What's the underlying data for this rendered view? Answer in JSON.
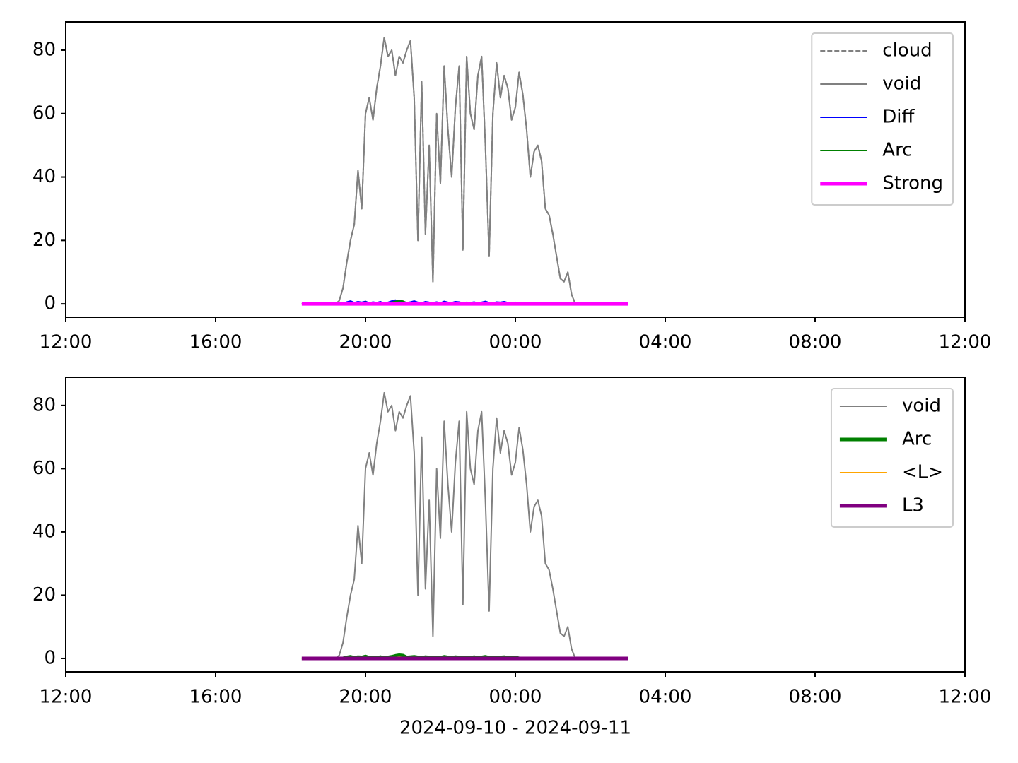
{
  "chart_data": [
    {
      "type": "line",
      "x": [
        18.3,
        18.4,
        18.5,
        18.6,
        18.7,
        18.8,
        18.9,
        19.0,
        19.1,
        19.2,
        19.3,
        19.4,
        19.5,
        19.6,
        19.7,
        19.8,
        19.9,
        20.0,
        20.1,
        20.2,
        20.3,
        20.4,
        20.5,
        20.6,
        20.7,
        20.8,
        20.9,
        21.0,
        21.1,
        21.2,
        21.3,
        21.4,
        21.5,
        21.6,
        21.7,
        21.8,
        21.9,
        22.0,
        22.1,
        22.2,
        22.3,
        22.4,
        22.5,
        22.6,
        22.7,
        22.8,
        22.9,
        23.0,
        23.1,
        23.2,
        23.3,
        23.4,
        23.5,
        23.6,
        23.7,
        23.8,
        23.9,
        24.0,
        24.1,
        24.2,
        24.3,
        24.4,
        24.5,
        24.6,
        24.7,
        24.8,
        24.9,
        25.0,
        25.1,
        25.2,
        25.3,
        25.4,
        25.5,
        25.6,
        25.7,
        25.8,
        25.9,
        26.0,
        26.1,
        26.2,
        26.3,
        26.4,
        26.5,
        26.6,
        26.7,
        26.8,
        26.9,
        27.0
      ],
      "series": [
        {
          "name": "cloud",
          "color": "#808080",
          "linestyle": "dashed",
          "linewidth": 2,
          "values": [
            0,
            0,
            0,
            0,
            0,
            0,
            0,
            0,
            0,
            0,
            1,
            5,
            13,
            20,
            25,
            42,
            30,
            60,
            65,
            58,
            68,
            75,
            84,
            78,
            80,
            72,
            78,
            76,
            80,
            83,
            65,
            20,
            70,
            22,
            50,
            7,
            60,
            38,
            75,
            55,
            40,
            62,
            75,
            17,
            78,
            60,
            55,
            72,
            78,
            50,
            15,
            60,
            76,
            65,
            72,
            68,
            58,
            62,
            73,
            66,
            55,
            40,
            48,
            50,
            45,
            30,
            28,
            22,
            15,
            8,
            7,
            10,
            3,
            0,
            0,
            0,
            0,
            0,
            0,
            0,
            0,
            0,
            0,
            0,
            0,
            0,
            0,
            0
          ]
        },
        {
          "name": "void",
          "color": "#808080",
          "linestyle": "solid",
          "linewidth": 2,
          "values": [
            0,
            0,
            0,
            0,
            0,
            0,
            0,
            0,
            0,
            0,
            1,
            5,
            13,
            20,
            25,
            42,
            30,
            60,
            65,
            58,
            68,
            75,
            84,
            78,
            80,
            72,
            78,
            76,
            80,
            83,
            65,
            20,
            70,
            22,
            50,
            7,
            60,
            38,
            75,
            55,
            40,
            62,
            75,
            17,
            78,
            60,
            55,
            72,
            78,
            50,
            15,
            60,
            76,
            65,
            72,
            68,
            58,
            62,
            73,
            66,
            55,
            40,
            48,
            50,
            45,
            30,
            28,
            22,
            15,
            8,
            7,
            10,
            3,
            0,
            0,
            0,
            0,
            0,
            0,
            0,
            0,
            0,
            0,
            0,
            0,
            0,
            0,
            0
          ]
        },
        {
          "name": "Diff",
          "color": "#0000ff",
          "linestyle": "solid",
          "linewidth": 2,
          "values": [
            0,
            0,
            0,
            0,
            0,
            0,
            0,
            0,
            0,
            0,
            0,
            0,
            0.6,
            0.9,
            0.4,
            0.7,
            0.5,
            0.8,
            0.3,
            0.6,
            0.4,
            0.7,
            0.2,
            0.5,
            0.9,
            1.2,
            0.6,
            0.8,
            0.4,
            0.6,
            0.9,
            0.5,
            0.3,
            0.7,
            0.5,
            0.4,
            0.6,
            0.3,
            0.8,
            0.5,
            0.4,
            0.7,
            0.6,
            0.3,
            0.5,
            0.4,
            0.6,
            0.2,
            0.5,
            0.8,
            0.4,
            0.3,
            0.6,
            0.5,
            0.7,
            0.4,
            0.3,
            0.5,
            0,
            0,
            0,
            0,
            0,
            0,
            0,
            0,
            0,
            0,
            0,
            0,
            0,
            0,
            0,
            0,
            0,
            0,
            0,
            0,
            0,
            0,
            0,
            0,
            0,
            0,
            0,
            0,
            0,
            0
          ]
        },
        {
          "name": "Arc",
          "color": "#008000",
          "linestyle": "solid",
          "linewidth": 2,
          "values": [
            0,
            0,
            0,
            0,
            0,
            0,
            0,
            0,
            0,
            0,
            0,
            0,
            0.3,
            0.5,
            0.2,
            0.4,
            0.3,
            0.6,
            0.2,
            0.3,
            0.2,
            0.4,
            0.1,
            0.3,
            0.5,
            0.8,
            1.0,
            0.9,
            0.3,
            0.4,
            0.5,
            0.3,
            0.2,
            0.4,
            0.3,
            0.2,
            0.3,
            0.2,
            0.5,
            0.3,
            0.2,
            0.4,
            0.3,
            0.2,
            0.3,
            0.2,
            0.4,
            0.1,
            0.3,
            0.5,
            0.2,
            0.2,
            0.3,
            0.3,
            0.4,
            0.2,
            0.2,
            0.3,
            0,
            0,
            0,
            0,
            0,
            0,
            0,
            0,
            0,
            0,
            0,
            0,
            0,
            0,
            0,
            0,
            0,
            0,
            0,
            0,
            0,
            0,
            0,
            0,
            0,
            0,
            0,
            0,
            0,
            0
          ]
        },
        {
          "name": "Strong",
          "color": "#ff00ff",
          "linestyle": "solid",
          "linewidth": 5,
          "values": [
            0,
            0,
            0,
            0,
            0,
            0,
            0,
            0,
            0,
            0,
            0,
            0,
            0,
            0,
            0,
            0,
            0,
            0,
            0,
            0,
            0,
            0,
            0,
            0,
            0,
            0,
            0,
            0,
            0,
            0,
            0,
            0,
            0,
            0,
            0,
            0,
            0,
            0,
            0,
            0,
            0,
            0,
            0,
            0,
            0,
            0,
            0,
            0,
            0,
            0,
            0,
            0,
            0,
            0,
            0,
            0,
            0,
            0,
            0,
            0,
            0,
            0,
            0,
            0,
            0,
            0,
            0,
            0,
            0,
            0,
            0,
            0,
            0,
            0,
            0,
            0,
            0,
            0,
            0,
            0,
            0,
            0,
            0,
            0,
            0,
            0,
            0,
            0
          ]
        }
      ],
      "xlim": [
        12,
        36
      ],
      "ylim": [
        -4.2,
        88.9
      ],
      "xticks": [
        {
          "value": 12,
          "label": "12:00"
        },
        {
          "value": 16,
          "label": "16:00"
        },
        {
          "value": 20,
          "label": "20:00"
        },
        {
          "value": 24,
          "label": "00:00"
        },
        {
          "value": 28,
          "label": "04:00"
        },
        {
          "value": 32,
          "label": "08:00"
        },
        {
          "value": 36,
          "label": "12:00"
        }
      ],
      "yticks": [
        0,
        20,
        40,
        60,
        80
      ],
      "legend": "upper right"
    },
    {
      "type": "line",
      "x": [
        18.3,
        18.4,
        18.5,
        18.6,
        18.7,
        18.8,
        18.9,
        19.0,
        19.1,
        19.2,
        19.3,
        19.4,
        19.5,
        19.6,
        19.7,
        19.8,
        19.9,
        20.0,
        20.1,
        20.2,
        20.3,
        20.4,
        20.5,
        20.6,
        20.7,
        20.8,
        20.9,
        21.0,
        21.1,
        21.2,
        21.3,
        21.4,
        21.5,
        21.6,
        21.7,
        21.8,
        21.9,
        22.0,
        22.1,
        22.2,
        22.3,
        22.4,
        22.5,
        22.6,
        22.7,
        22.8,
        22.9,
        23.0,
        23.1,
        23.2,
        23.3,
        23.4,
        23.5,
        23.6,
        23.7,
        23.8,
        23.9,
        24.0,
        24.1,
        24.2,
        24.3,
        24.4,
        24.5,
        24.6,
        24.7,
        24.8,
        24.9,
        25.0,
        25.1,
        25.2,
        25.3,
        25.4,
        25.5,
        25.6,
        25.7,
        25.8,
        25.9,
        26.0,
        26.1,
        26.2,
        26.3,
        26.4,
        26.5,
        26.6,
        26.7,
        26.8,
        26.9,
        27.0
      ],
      "series": [
        {
          "name": "void",
          "color": "#808080",
          "linestyle": "solid",
          "linewidth": 2,
          "values": [
            0,
            0,
            0,
            0,
            0,
            0,
            0,
            0,
            0,
            0,
            1,
            5,
            13,
            20,
            25,
            42,
            30,
            60,
            65,
            58,
            68,
            75,
            84,
            78,
            80,
            72,
            78,
            76,
            80,
            83,
            65,
            20,
            70,
            22,
            50,
            7,
            60,
            38,
            75,
            55,
            40,
            62,
            75,
            17,
            78,
            60,
            55,
            72,
            78,
            50,
            15,
            60,
            76,
            65,
            72,
            68,
            58,
            62,
            73,
            66,
            55,
            40,
            48,
            50,
            45,
            30,
            28,
            22,
            15,
            8,
            7,
            10,
            3,
            0,
            0,
            0,
            0,
            0,
            0,
            0,
            0,
            0,
            0,
            0,
            0,
            0,
            0,
            0
          ]
        },
        {
          "name": "Arc",
          "color": "#008000",
          "linestyle": "solid",
          "linewidth": 5,
          "values": [
            0,
            0,
            0,
            0,
            0,
            0,
            0,
            0,
            0,
            0,
            0,
            0,
            0.3,
            0.5,
            0.2,
            0.4,
            0.3,
            0.6,
            0.2,
            0.3,
            0.2,
            0.4,
            0.1,
            0.3,
            0.5,
            0.8,
            1.0,
            0.9,
            0.3,
            0.4,
            0.5,
            0.3,
            0.2,
            0.4,
            0.3,
            0.2,
            0.3,
            0.2,
            0.5,
            0.3,
            0.2,
            0.4,
            0.3,
            0.2,
            0.3,
            0.2,
            0.4,
            0.1,
            0.3,
            0.5,
            0.2,
            0.2,
            0.3,
            0.3,
            0.4,
            0.2,
            0.2,
            0.3,
            0,
            0,
            0,
            0,
            0,
            0,
            0,
            0,
            0,
            0,
            0,
            0,
            0,
            0,
            0,
            0,
            0,
            0,
            0,
            0,
            0,
            0,
            0,
            0,
            0,
            0,
            0,
            0,
            0,
            0
          ]
        },
        {
          "name": "<L>",
          "color": "#ffa500",
          "linestyle": "solid",
          "linewidth": 2,
          "values": [
            0,
            0,
            0,
            0,
            0,
            0,
            0,
            0,
            0,
            0,
            0,
            0,
            0.2,
            0.3,
            0.2,
            0.2,
            0.3,
            0.2,
            0.2,
            0.3,
            0.2,
            0.2,
            0.2,
            0.3,
            0.2,
            0.3,
            0.4,
            0.3,
            0.2,
            0.2,
            0.3,
            0.2,
            0.2,
            0.2,
            0.3,
            0.2,
            0.2,
            0.2,
            0.3,
            0.2,
            0.2,
            0.3,
            0.2,
            0.2,
            0.2,
            0.2,
            0.3,
            0.2,
            0.2,
            0.3,
            0.2,
            0.2,
            0.2,
            0.2,
            0.3,
            0.2,
            0.2,
            0.2,
            0,
            0,
            0,
            0,
            0,
            0,
            0,
            0,
            0,
            0,
            0,
            0,
            0,
            0,
            0,
            0,
            0,
            0,
            0,
            0,
            0,
            0,
            0,
            0,
            0,
            0,
            0,
            0,
            0,
            0
          ]
        },
        {
          "name": "L3",
          "color": "#800080",
          "linestyle": "solid",
          "linewidth": 5,
          "values": [
            0,
            0,
            0,
            0,
            0,
            0,
            0,
            0,
            0,
            0,
            0,
            0,
            0,
            0,
            0,
            0,
            0,
            0,
            0,
            0,
            0,
            0,
            0,
            0,
            0,
            0,
            0,
            0,
            0,
            0,
            0,
            0,
            0,
            0,
            0,
            0,
            0,
            0,
            0,
            0,
            0,
            0,
            0,
            0,
            0,
            0,
            0,
            0,
            0,
            0,
            0,
            0,
            0,
            0,
            0,
            0,
            0,
            0,
            0,
            0,
            0,
            0,
            0,
            0,
            0,
            0,
            0,
            0,
            0,
            0,
            0,
            0,
            0,
            0,
            0,
            0,
            0,
            0,
            0,
            0,
            0,
            0,
            0,
            0,
            0,
            0,
            0,
            0
          ]
        }
      ],
      "xlim": [
        12,
        36
      ],
      "ylim": [
        -4.25,
        88.9
      ],
      "xticks": [
        {
          "value": 12,
          "label": "12:00"
        },
        {
          "value": 16,
          "label": "16:00"
        },
        {
          "value": 20,
          "label": "20:00"
        },
        {
          "value": 24,
          "label": "00:00"
        },
        {
          "value": 28,
          "label": "04:00"
        },
        {
          "value": 32,
          "label": "08:00"
        },
        {
          "value": 36,
          "label": "12:00"
        }
      ],
      "yticks": [
        0,
        20,
        40,
        60,
        80
      ],
      "xlabel": "2024-09-10 - 2024-09-11",
      "legend": "upper right"
    }
  ]
}
